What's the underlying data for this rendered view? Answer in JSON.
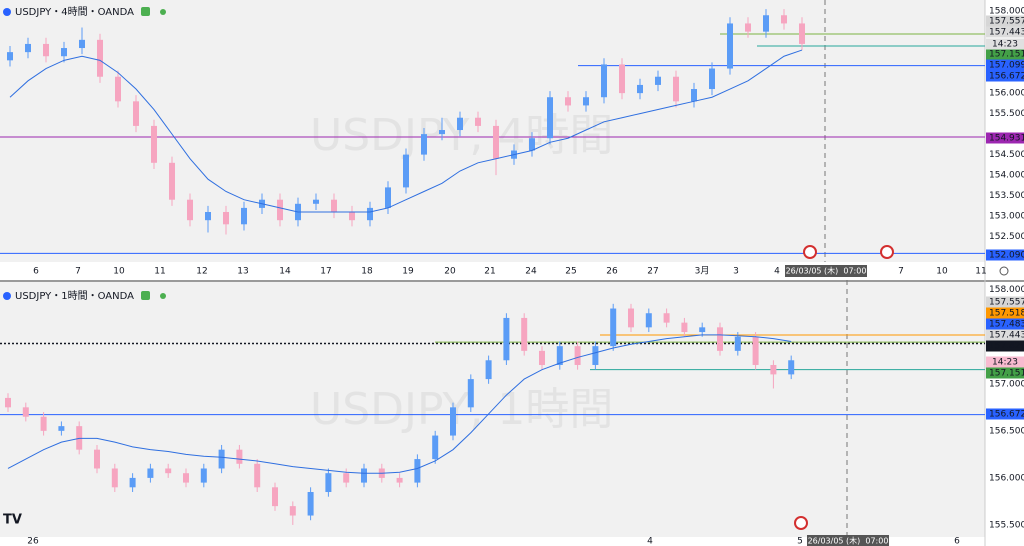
{
  "chart_data": [
    {
      "type": "candlestick",
      "title": "USDJPY・4時間・OANDA",
      "watermark": "USDJPY, 4時間",
      "ylim": [
        151.88,
        158.15
      ],
      "yticks": [
        {
          "value": 158,
          "label": "158.000"
        },
        {
          "value": 156,
          "label": "156.000"
        },
        {
          "value": 155.5,
          "label": "155.500"
        },
        {
          "value": 154.5,
          "label": "154.500"
        },
        {
          "value": 154,
          "label": "154.000"
        },
        {
          "value": 153.5,
          "label": "153.500"
        },
        {
          "value": 153,
          "label": "153.000"
        },
        {
          "value": 152.5,
          "label": "152.500"
        }
      ],
      "xlabels": [
        "6",
        "7",
        "10",
        "11",
        "12",
        "13",
        "14",
        "17",
        "18",
        "19",
        "20",
        "21",
        "24",
        "25",
        "26",
        "27",
        "3月",
        "3",
        "4",
        "7",
        "10",
        "11"
      ],
      "crosshair_label": "26/03/05 (木)  07:00",
      "countdown": "14:23",
      "bull_color": "#5b9cf6",
      "bear_color": "#f6a5c0",
      "candles": [
        [
          156.8,
          157.15,
          156.65,
          157.0
        ],
        [
          157.0,
          157.35,
          156.85,
          157.2
        ],
        [
          157.2,
          157.35,
          156.75,
          156.9
        ],
        [
          156.9,
          157.25,
          156.75,
          157.1
        ],
        [
          157.1,
          157.6,
          156.95,
          157.3
        ],
        [
          157.3,
          157.45,
          156.25,
          156.4
        ],
        [
          156.4,
          156.55,
          155.65,
          155.8
        ],
        [
          155.8,
          155.95,
          155.05,
          155.2
        ],
        [
          155.2,
          155.35,
          154.15,
          154.3
        ],
        [
          154.3,
          154.45,
          153.25,
          153.4
        ],
        [
          153.4,
          153.55,
          152.75,
          152.9
        ],
        [
          152.9,
          153.25,
          152.6,
          153.1
        ],
        [
          153.1,
          153.25,
          152.55,
          152.8
        ],
        [
          152.8,
          153.35,
          152.65,
          153.2
        ],
        [
          153.2,
          153.55,
          153.05,
          153.4
        ],
        [
          153.4,
          153.55,
          152.75,
          152.9
        ],
        [
          152.9,
          153.45,
          152.75,
          153.3
        ],
        [
          153.3,
          153.55,
          153.15,
          153.4
        ],
        [
          153.4,
          153.55,
          152.95,
          153.1
        ],
        [
          153.1,
          153.25,
          152.75,
          152.9
        ],
        [
          152.9,
          153.35,
          152.75,
          153.2
        ],
        [
          153.2,
          153.85,
          153.05,
          153.7
        ],
        [
          153.7,
          154.65,
          153.55,
          154.5
        ],
        [
          154.5,
          155.15,
          154.35,
          155.0
        ],
        [
          155.0,
          155.4,
          154.85,
          155.1
        ],
        [
          155.1,
          155.55,
          154.95,
          155.4
        ],
        [
          155.4,
          155.55,
          155.05,
          155.2
        ],
        [
          155.2,
          155.35,
          154.0,
          154.4
        ],
        [
          154.4,
          154.75,
          154.25,
          154.6
        ],
        [
          154.6,
          155.05,
          154.45,
          154.9
        ],
        [
          154.9,
          156.05,
          154.75,
          155.9
        ],
        [
          155.9,
          156.05,
          155.55,
          155.7
        ],
        [
          155.7,
          156.05,
          155.55,
          155.9
        ],
        [
          155.9,
          156.85,
          155.75,
          156.7
        ],
        [
          156.7,
          156.85,
          155.85,
          156.0
        ],
        [
          156.0,
          156.35,
          155.85,
          156.2
        ],
        [
          156.2,
          156.55,
          156.05,
          156.4
        ],
        [
          156.4,
          156.55,
          155.65,
          155.8
        ],
        [
          155.8,
          156.25,
          155.65,
          156.1
        ],
        [
          156.1,
          156.75,
          155.95,
          156.6
        ],
        [
          156.6,
          157.85,
          156.45,
          157.7
        ],
        [
          157.7,
          157.85,
          157.35,
          157.5
        ],
        [
          157.5,
          158.05,
          157.35,
          157.9
        ],
        [
          157.9,
          158.05,
          157.55,
          157.7
        ],
        [
          157.7,
          157.85,
          157.05,
          157.2
        ]
      ],
      "ma": {
        "color": "#2f6fe0",
        "values": [
          155.9,
          156.3,
          156.6,
          156.8,
          156.9,
          156.8,
          156.5,
          156.1,
          155.6,
          155.0,
          154.4,
          153.9,
          153.6,
          153.4,
          153.3,
          153.2,
          153.1,
          153.1,
          153.1,
          153.1,
          153.1,
          153.2,
          153.4,
          153.6,
          153.8,
          154.1,
          154.3,
          154.4,
          154.5,
          154.6,
          154.8,
          154.9,
          155.1,
          155.3,
          155.4,
          155.5,
          155.6,
          155.7,
          155.8,
          155.9,
          156.1,
          156.3,
          156.6,
          156.9,
          157.05
        ]
      },
      "levels": [
        {
          "value": 157.557,
          "color": "#d6d6d6"
        },
        {
          "value": 157.443,
          "color": "#dcdcdc",
          "line_color": "#7cb342"
        },
        {
          "value": 157.151,
          "color": "#43a047",
          "line_color": "#26a69a"
        },
        {
          "value": 157.099,
          "color": "#2962ff"
        },
        {
          "value": 156.672,
          "color": "#2962ff",
          "line_color": "#2962ff"
        },
        {
          "value": 154.931,
          "color": "#9c27b0",
          "line_color": "#9c27b0"
        },
        {
          "value": 152.09,
          "label": "152.090",
          "color": "#2962ff",
          "line_color": "#2962ff"
        }
      ]
    },
    {
      "type": "candlestick",
      "title": "USDJPY・1時間・OANDA",
      "watermark": "USDJPY, 1時間",
      "ylim": [
        155.34,
        158.05
      ],
      "yticks": [
        {
          "value": 158,
          "label": "158.000"
        },
        {
          "value": 157,
          "label": "157.000"
        },
        {
          "value": 156.5,
          "label": "156.500"
        },
        {
          "value": 156,
          "label": "156.000"
        },
        {
          "value": 155.5,
          "label": "155.500"
        }
      ],
      "xlabels": [
        "26",
        "4",
        "5",
        "6"
      ],
      "crosshair_label": "26/03/05 (木)  07:00",
      "countdown": "14:23",
      "bull_color": "#5b9cf6",
      "bear_color": "#f6a5c0",
      "candles": [
        [
          156.85,
          156.9,
          156.7,
          156.75
        ],
        [
          156.75,
          156.8,
          156.6,
          156.65
        ],
        [
          156.65,
          156.7,
          156.45,
          156.5
        ],
        [
          156.5,
          156.6,
          156.45,
          156.55
        ],
        [
          156.55,
          156.6,
          156.25,
          156.3
        ],
        [
          156.3,
          156.35,
          156.05,
          156.1
        ],
        [
          156.1,
          156.15,
          155.85,
          155.9
        ],
        [
          155.9,
          156.05,
          155.85,
          156.0
        ],
        [
          156.0,
          156.15,
          155.95,
          156.1
        ],
        [
          156.1,
          156.15,
          156.0,
          156.05
        ],
        [
          156.05,
          156.1,
          155.9,
          155.95
        ],
        [
          155.95,
          156.15,
          155.9,
          156.1
        ],
        [
          156.1,
          156.35,
          156.05,
          156.3
        ],
        [
          156.3,
          156.35,
          156.1,
          156.15
        ],
        [
          156.15,
          156.2,
          155.85,
          155.9
        ],
        [
          155.9,
          155.95,
          155.65,
          155.7
        ],
        [
          155.7,
          155.75,
          155.5,
          155.6
        ],
        [
          155.6,
          155.9,
          155.55,
          155.85
        ],
        [
          155.85,
          156.1,
          155.8,
          156.05
        ],
        [
          156.05,
          156.1,
          155.9,
          155.95
        ],
        [
          155.95,
          156.15,
          155.9,
          156.1
        ],
        [
          156.1,
          156.15,
          155.95,
          156.0
        ],
        [
          156.0,
          156.05,
          155.9,
          155.95
        ],
        [
          155.95,
          156.25,
          155.9,
          156.2
        ],
        [
          156.2,
          156.5,
          156.15,
          156.45
        ],
        [
          156.45,
          156.8,
          156.4,
          156.75
        ],
        [
          156.75,
          157.1,
          156.7,
          157.05
        ],
        [
          157.05,
          157.3,
          157.0,
          157.25
        ],
        [
          157.25,
          157.75,
          157.2,
          157.7
        ],
        [
          157.7,
          157.75,
          157.3,
          157.35
        ],
        [
          157.35,
          157.4,
          157.15,
          157.2
        ],
        [
          157.2,
          157.45,
          157.15,
          157.4
        ],
        [
          157.4,
          157.45,
          157.15,
          157.2
        ],
        [
          157.2,
          157.45,
          157.15,
          157.4
        ],
        [
          157.4,
          157.85,
          157.35,
          157.8
        ],
        [
          157.8,
          157.85,
          157.55,
          157.6
        ],
        [
          157.6,
          157.8,
          157.55,
          157.75
        ],
        [
          157.75,
          157.8,
          157.6,
          157.65
        ],
        [
          157.65,
          157.7,
          157.5,
          157.55
        ],
        [
          157.55,
          157.65,
          157.5,
          157.6
        ],
        [
          157.6,
          157.65,
          157.3,
          157.35
        ],
        [
          157.35,
          157.55,
          157.3,
          157.5
        ],
        [
          157.5,
          157.55,
          157.15,
          157.2
        ],
        [
          157.2,
          157.25,
          156.95,
          157.1
        ],
        [
          157.1,
          157.3,
          157.05,
          157.25
        ]
      ],
      "ma": {
        "color": "#2f6fe0",
        "values": [
          156.1,
          156.2,
          156.3,
          156.38,
          156.42,
          156.42,
          156.38,
          156.33,
          156.3,
          156.28,
          156.25,
          156.23,
          156.22,
          156.2,
          156.18,
          156.15,
          156.12,
          156.1,
          156.08,
          156.06,
          156.05,
          156.05,
          156.06,
          156.1,
          156.18,
          156.3,
          156.48,
          156.68,
          156.88,
          157.05,
          157.15,
          157.22,
          157.28,
          157.33,
          157.38,
          157.42,
          157.45,
          157.48,
          157.5,
          157.52,
          157.52,
          157.51,
          157.5,
          157.48,
          157.45
        ]
      },
      "levels": [
        {
          "value": 157.557,
          "color": "#d6d6d6"
        },
        {
          "value": 157.518,
          "color": "#ff9800",
          "line_color": "#ff9800"
        },
        {
          "value": 157.483,
          "color": "#2962ff"
        },
        {
          "value": 157.443,
          "color": "#dcdcdc",
          "line_color": "#7cb342"
        },
        {
          "value": 157.428,
          "color": "#131722",
          "line_color": "#131722",
          "line_style": "dotted"
        },
        {
          "value": 157.151,
          "color": "#43a047",
          "line_color": "#26a69a"
        },
        {
          "value": 156.672,
          "color": "#2962ff",
          "line_color": "#2962ff"
        }
      ]
    }
  ]
}
